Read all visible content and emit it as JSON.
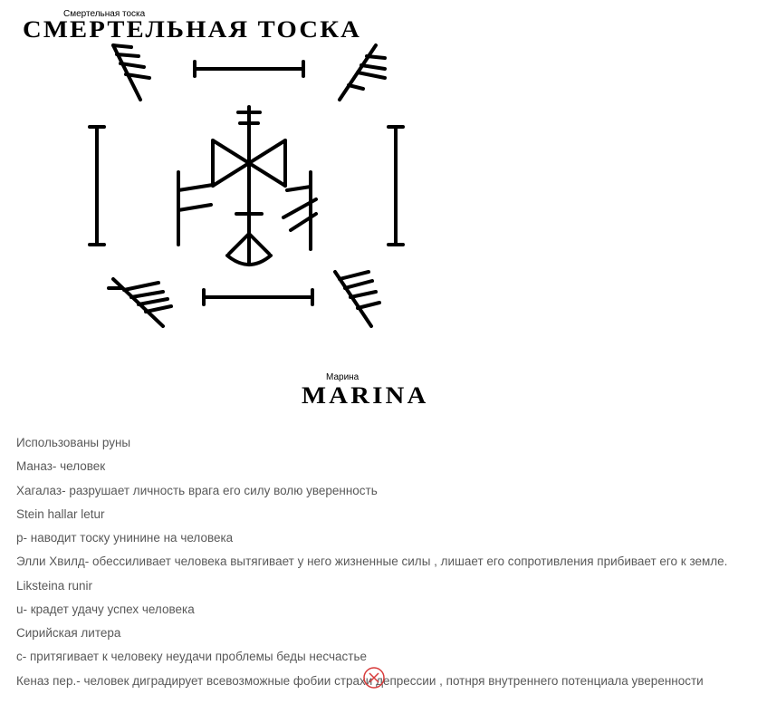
{
  "title": "СМЕРТЕЛЬНАЯ ТОСКА",
  "overlay_title": "Смертельная тоска",
  "author": "MARINA",
  "overlay_author": "Марина",
  "text_lines": [
    {
      "t": "Использованы руны",
      "j": false
    },
    {
      "t": "Маназ- человек",
      "j": false
    },
    {
      "t": "Хагалаз- разрушает личность врага его силу волю уверенность",
      "j": false
    },
    {
      "t": "Stein hallar letur",
      "j": false
    },
    {
      "t": "p- наводит тоску унинине на человека",
      "j": false
    },
    {
      "t": "Элли Хвилд- обессиливает человека вытягивает у него жизненные силы , лишает его сопротивления прибивает его к земле.",
      "j": true
    },
    {
      "t": "Liksteina runir",
      "j": false
    },
    {
      "t": "u- крадет удачу успех человека",
      "j": false
    },
    {
      "t": "Сирийская литера",
      "j": false
    },
    {
      "t": "c- притягивает к человеку неудачи проблемы беды несчастье",
      "j": false
    },
    {
      "t": "Кеназ пер.- человек диградирует всевозможные фобии страхи депрессии , потнря внутреннего потенциала уверенности",
      "j": true
    }
  ],
  "colors": {
    "text": "#595959",
    "stroke": "#000000",
    "close_stroke": "#d83b3b"
  }
}
